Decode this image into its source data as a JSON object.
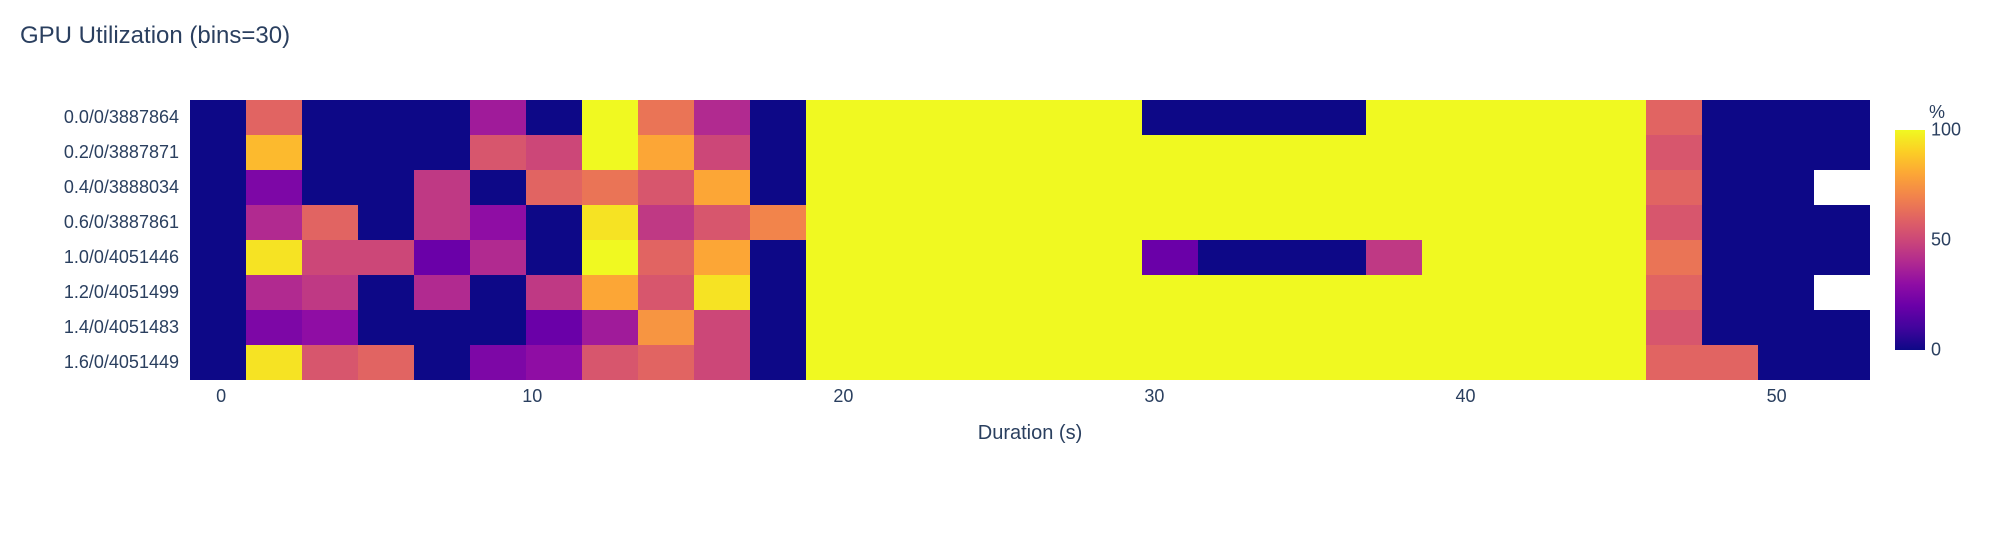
{
  "chart": {
    "type": "heatmap",
    "title": "GPU Utilization (bins=30)",
    "title_fontsize": 24,
    "title_color": "#2a3f5f",
    "background_color": "#ffffff",
    "row_labels": [
      "0.0/0/3887864",
      "0.2/0/3887871",
      "0.4/0/3888034",
      "0.6/0/3887861",
      "1.0/0/4051446",
      "1.2/0/4051499",
      "1.4/0/4051483",
      "1.6/0/4051449"
    ],
    "n_cols": 30,
    "x_axis": {
      "label": "Duration (s)",
      "label_fontsize": 20,
      "data_min": -1,
      "data_max": 53,
      "ticks": [
        0,
        10,
        20,
        30,
        40,
        50
      ],
      "tick_fontsize": 18
    },
    "y_axis": {
      "tick_fontsize": 18
    },
    "colorbar": {
      "title": "%",
      "title_fontsize": 18,
      "ticks": [
        0,
        50,
        100
      ],
      "tick_fontsize": 18,
      "vmin": 0,
      "vmax": 100
    },
    "colormap": "viridis",
    "colormap_stops": [
      [
        0.0,
        "#440154"
      ],
      [
        0.125,
        "#482475"
      ],
      [
        0.25,
        "#414487"
      ],
      [
        0.375,
        "#355f8d"
      ],
      [
        0.5,
        "#2a788e"
      ],
      [
        0.625,
        "#21918c"
      ],
      [
        0.75,
        "#22a884"
      ],
      [
        0.875,
        "#7ad151"
      ],
      [
        1.0,
        "#fde725"
      ]
    ],
    "colormap_override": [
      [
        0.0,
        "#0d0887"
      ],
      [
        0.1,
        "#41049d"
      ],
      [
        0.2,
        "#6a00a8"
      ],
      [
        0.3,
        "#8f0da4"
      ],
      [
        0.4,
        "#b12a90"
      ],
      [
        0.5,
        "#cc4778"
      ],
      [
        0.6,
        "#e16462"
      ],
      [
        0.7,
        "#f2844b"
      ],
      [
        0.8,
        "#fca636"
      ],
      [
        0.9,
        "#fcce25"
      ],
      [
        1.0,
        "#f0f921"
      ]
    ],
    "nan_color": "#ffffff",
    "values": [
      [
        0,
        60,
        0,
        0,
        0,
        35,
        0,
        100,
        65,
        40,
        0,
        100,
        100,
        100,
        100,
        100,
        100,
        0,
        0,
        0,
        0,
        100,
        100,
        100,
        100,
        100,
        60,
        0,
        0,
        0
      ],
      [
        0,
        85,
        0,
        0,
        0,
        55,
        50,
        100,
        80,
        50,
        0,
        100,
        100,
        100,
        100,
        100,
        100,
        100,
        100,
        100,
        100,
        100,
        100,
        100,
        100,
        100,
        55,
        0,
        0,
        0
      ],
      [
        0,
        25,
        0,
        0,
        45,
        0,
        60,
        65,
        55,
        80,
        0,
        100,
        100,
        100,
        100,
        100,
        100,
        100,
        100,
        100,
        100,
        100,
        100,
        100,
        100,
        100,
        60,
        0,
        0,
        null
      ],
      [
        0,
        40,
        60,
        0,
        45,
        30,
        0,
        95,
        45,
        55,
        70,
        100,
        100,
        100,
        100,
        100,
        100,
        100,
        100,
        100,
        100,
        100,
        100,
        100,
        100,
        100,
        55,
        0,
        0,
        0
      ],
      [
        0,
        95,
        50,
        50,
        20,
        40,
        0,
        100,
        60,
        80,
        0,
        100,
        100,
        100,
        100,
        100,
        100,
        20,
        0,
        0,
        0,
        45,
        100,
        100,
        100,
        100,
        65,
        0,
        0,
        0
      ],
      [
        0,
        40,
        45,
        0,
        40,
        0,
        45,
        80,
        55,
        95,
        0,
        100,
        100,
        100,
        100,
        100,
        100,
        100,
        100,
        100,
        100,
        100,
        100,
        100,
        100,
        100,
        60,
        0,
        0,
        null
      ],
      [
        0,
        25,
        30,
        0,
        0,
        0,
        20,
        35,
        75,
        50,
        0,
        100,
        100,
        100,
        100,
        100,
        100,
        100,
        100,
        100,
        100,
        100,
        100,
        100,
        100,
        100,
        55,
        0,
        0,
        0
      ],
      [
        0,
        95,
        55,
        60,
        0,
        25,
        30,
        55,
        60,
        50,
        0,
        100,
        100,
        100,
        100,
        100,
        100,
        100,
        100,
        100,
        100,
        100,
        100,
        100,
        100,
        100,
        60,
        60,
        0,
        0
      ]
    ]
  }
}
